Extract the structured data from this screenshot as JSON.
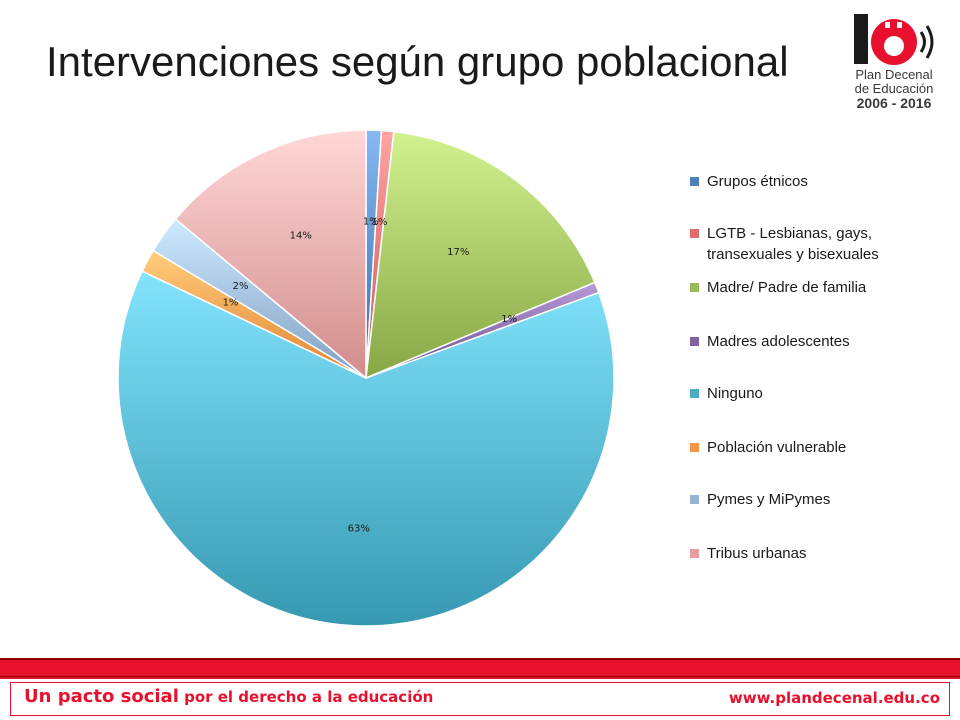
{
  "page": {
    "title": "Intervenciones según grupo poblacional"
  },
  "logo": {
    "icon": "plan-decenal-logo",
    "number": "10",
    "line1": "Plan Decenal",
    "line2": "de Educación",
    "line3": "2006 - 2016"
  },
  "chart_data": {
    "type": "pie",
    "title": "",
    "legend_position": "right",
    "slices": [
      {
        "label": "Grupos étnicos",
        "value": 1,
        "value_label": "1%",
        "color": "#4f81bd"
      },
      {
        "label": "LGTB - Lesbianas, gays, transexuales y bisexuales",
        "value": 0.8,
        "value_label": "1%",
        "color": "#e06c6c"
      },
      {
        "label": "Madre/ Padre de familia",
        "value": 17,
        "value_label": "17%",
        "color": "#9bbb59"
      },
      {
        "label": "Madres adolescentes",
        "value": 0.7,
        "value_label": "1%",
        "color": "#8064a2"
      },
      {
        "label": "Ninguno",
        "value": 63,
        "value_label": "63%",
        "color": "#4bacc6"
      },
      {
        "label": "Población vulnerable",
        "value": 1.5,
        "value_label": "1%",
        "color": "#f79646"
      },
      {
        "label": "Pymes y MiPymes",
        "value": 2.5,
        "value_label": "2%",
        "color": "#95b3d7"
      },
      {
        "label": "Tribus urbanas",
        "value": 14,
        "value_label": "14%",
        "color": "#e6a0a0"
      }
    ]
  },
  "footer": {
    "slogan_main": "Un pacto social",
    "slogan_rest": " por el derecho a la educación",
    "url": "www.plandecenal.edu.co",
    "accent_color": "#e8112d"
  }
}
